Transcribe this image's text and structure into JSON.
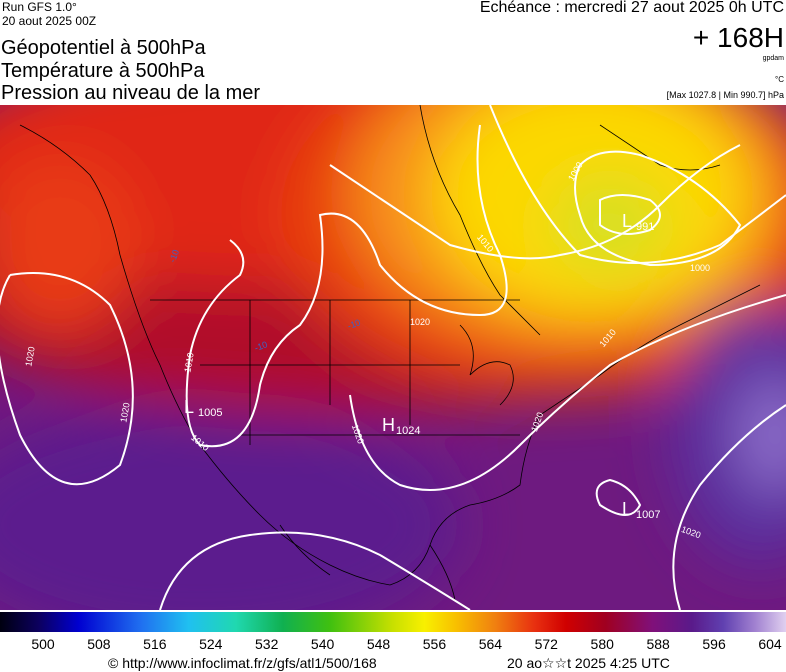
{
  "header": {
    "run": "Run GFS 1.0°",
    "run_date": "20 aout 2025 00Z",
    "fields": [
      "Géopotentiel à 500hPa",
      "Température à 500hPa",
      "Pression au niveau de la mer"
    ],
    "valid": "Echéance : mercredi 27 aout 2025 0h UTC",
    "lead": "+ 168H",
    "unit_geopotential": "gpdam",
    "unit_temperature": "°C",
    "pressure_range": "[Max 1027.8 | Min 990.7] hPa"
  },
  "map": {
    "isobar_labels": [
      "1020",
      "1010",
      "1020",
      "1010",
      "1020",
      "1010",
      "1000",
      "1000",
      "1010",
      "1020",
      "1020",
      "1020"
    ],
    "temperature_labels": [
      "-10",
      "-10",
      "-10"
    ],
    "centers": [
      {
        "symbol": "L",
        "value": "1005"
      },
      {
        "symbol": "H",
        "value": "1024"
      },
      {
        "symbol": "L",
        "value": "991"
      },
      {
        "symbol": "L",
        "value": "1007"
      }
    ]
  },
  "colorbar": {
    "labels": [
      500,
      508,
      516,
      524,
      532,
      540,
      548,
      556,
      564,
      572,
      580,
      588,
      596,
      604
    ]
  },
  "footer": {
    "source": "© http://www.infoclimat.fr/z/gfs/atl1/500/168",
    "generated": "20 ao☆☆t 2025  4:25 UTC"
  }
}
